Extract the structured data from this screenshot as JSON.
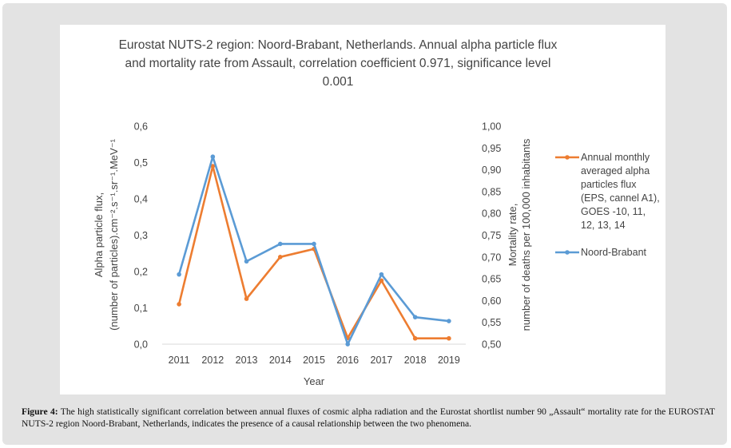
{
  "chart_data": {
    "type": "line",
    "title_lines": [
      "Eurostat NUTS-2 region: Noord-Brabant, Netherlands. Annual alpha particle flux",
      "and mortality rate from Assault, correlation coefficient 0.971, significance level",
      "0.001"
    ],
    "xlabel": "Year",
    "ylabel_left_lines": [
      "Alpha particle flux,",
      "(number of particles).cm⁻².s⁻¹.sr⁻¹.MeV⁻¹"
    ],
    "ylabel_right_lines": [
      "Mortality rate,",
      "number of deaths per 100,000 inhabitants"
    ],
    "categories": [
      "2011",
      "2012",
      "2013",
      "2014",
      "2015",
      "2016",
      "2017",
      "2018",
      "2019"
    ],
    "y_left": {
      "lim": [
        0,
        0.6
      ],
      "ticks": [
        "0,0",
        "0,1",
        "0,2",
        "0,3",
        "0,4",
        "0,5",
        "0,6"
      ]
    },
    "y_right": {
      "lim": [
        0.5,
        1.0
      ],
      "ticks": [
        "0,50",
        "0,55",
        "0,60",
        "0,65",
        "0,70",
        "0,75",
        "0,80",
        "0,85",
        "0,90",
        "0,95",
        "1,00"
      ]
    },
    "series": [
      {
        "name_lines": [
          "Annual monthly",
          "averaged alpha",
          "particles flux",
          "(EPS, cannel A1),",
          "GOES -10, 11,",
          "12, 13, 14"
        ],
        "axis": "left",
        "color": "#ED7D31",
        "values": [
          0.11,
          0.49,
          0.125,
          0.24,
          0.262,
          0.017,
          0.175,
          0.016,
          0.016
        ]
      },
      {
        "name_lines": [
          "Noord-Brabant"
        ],
        "axis": "right",
        "color": "#5B9BD5",
        "values": [
          0.66,
          0.93,
          0.69,
          0.73,
          0.73,
          0.5,
          0.66,
          0.562,
          0.553
        ]
      }
    ],
    "grid": false,
    "legend_position": "right"
  },
  "caption": {
    "label": "Figure 4:",
    "text": " The high statistically significant correlation between annual fluxes of cosmic alpha radiation and the Eurostat shortlist number 90 „Assault“ mortality rate for the EUROSTAT NUTS-2 region Noord-Brabant, Netherlands, indicates the presence of a causal relationship between the two phenomena."
  }
}
